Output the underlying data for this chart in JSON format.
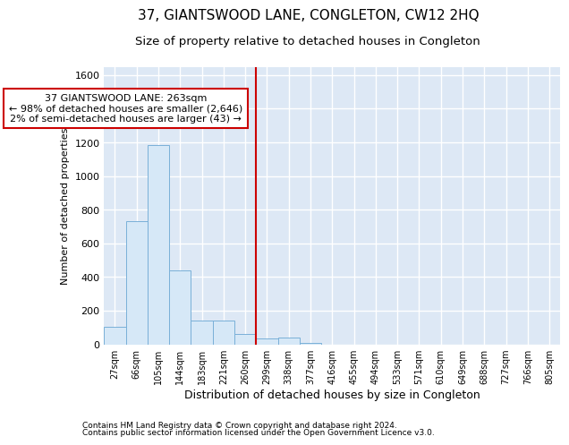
{
  "title": "37, GIANTSWOOD LANE, CONGLETON, CW12 2HQ",
  "subtitle": "Size of property relative to detached houses in Congleton",
  "xlabel": "Distribution of detached houses by size in Congleton",
  "ylabel": "Number of detached properties",
  "footnote1": "Contains HM Land Registry data © Crown copyright and database right 2024.",
  "footnote2": "Contains public sector information licensed under the Open Government Licence v3.0.",
  "bin_labels": [
    "27sqm",
    "66sqm",
    "105sqm",
    "144sqm",
    "183sqm",
    "221sqm",
    "260sqm",
    "299sqm",
    "338sqm",
    "377sqm",
    "416sqm",
    "455sqm",
    "494sqm",
    "533sqm",
    "571sqm",
    "610sqm",
    "649sqm",
    "688sqm",
    "727sqm",
    "766sqm",
    "805sqm"
  ],
  "bar_values": [
    105,
    730,
    1185,
    440,
    140,
    140,
    60,
    35,
    40,
    8,
    0,
    0,
    0,
    0,
    0,
    0,
    0,
    0,
    0,
    0,
    0
  ],
  "bar_color": "#d6e8f7",
  "bar_edgecolor": "#7ab0d8",
  "vline_x": 6.5,
  "vline_color": "#cc0000",
  "annotation_line1": "37 GIANTSWOOD LANE: 263sqm",
  "annotation_line2": "← 98% of detached houses are smaller (2,646)",
  "annotation_line3": "2% of semi-detached houses are larger (43) →",
  "annotation_box_color": "#cc0000",
  "ylim": [
    0,
    1650
  ],
  "yticks": [
    0,
    200,
    400,
    600,
    800,
    1000,
    1200,
    1400,
    1600
  ],
  "background_color": "#dde8f5",
  "grid_color": "#ffffff",
  "title_fontsize": 11,
  "subtitle_fontsize": 9.5,
  "xlabel_fontsize": 9,
  "ylabel_fontsize": 8
}
